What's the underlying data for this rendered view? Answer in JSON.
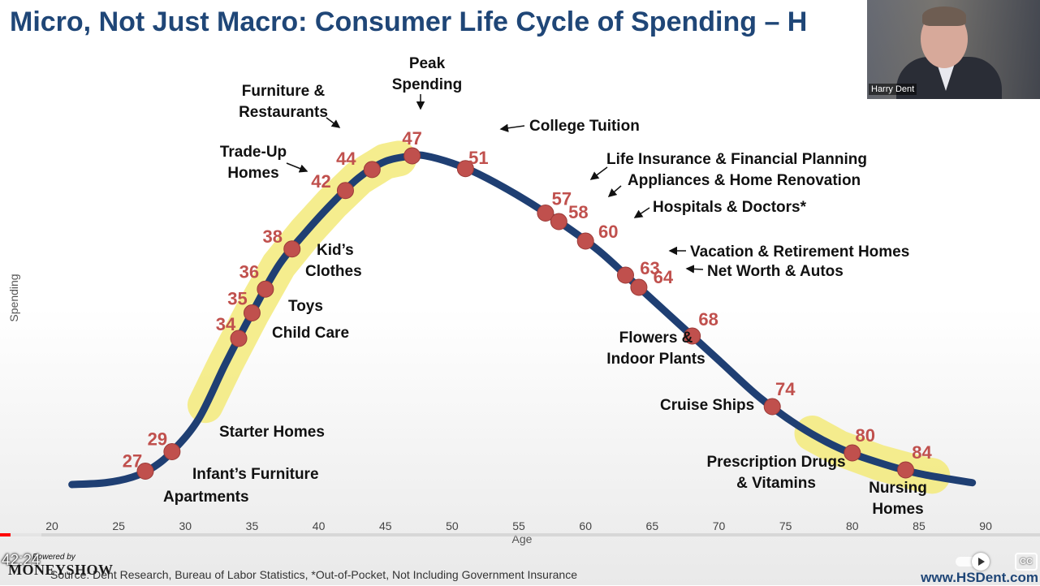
{
  "slide": {
    "title": "Micro, Not Just Macro: Consumer Life Cycle of Spending – H",
    "source": "Source: Dent Research, Bureau of Labor Statistics, *Out-of-Pocket, Not Including Government Insurance",
    "url": "www.HSDent.com"
  },
  "webcam": {
    "name": "Harry Dent"
  },
  "player": {
    "timestamp": "42:24",
    "powered_by": "Powered by",
    "logo": "MONEYSHOW",
    "cc_label": "CC",
    "progress_fraction": 0.01,
    "buffer_fraction": 0.04
  },
  "chart_data": {
    "type": "line",
    "title": "Micro, Not Just Macro: Consumer Life Cycle of Spending – H",
    "xlabel": "Age",
    "ylabel": "Spending",
    "xlim": [
      20,
      90
    ],
    "ylim": [
      0,
      100
    ],
    "xticks": [
      "20",
      "25",
      "30",
      "35",
      "40",
      "45",
      "50",
      "55",
      "60",
      "65",
      "70",
      "75",
      "80",
      "85",
      "90"
    ],
    "curve": [
      [
        21.5,
        4
      ],
      [
        24,
        4.5
      ],
      [
        26,
        6
      ],
      [
        27.5,
        8.5
      ],
      [
        29,
        13
      ],
      [
        31,
        22
      ],
      [
        33,
        37
      ],
      [
        35,
        51
      ],
      [
        37,
        64
      ],
      [
        39,
        73
      ],
      [
        41,
        81
      ],
      [
        43,
        88
      ],
      [
        45,
        92.5
      ],
      [
        47,
        94
      ],
      [
        48,
        94
      ],
      [
        50,
        92
      ],
      [
        52,
        89
      ],
      [
        55,
        83
      ],
      [
        58,
        76
      ],
      [
        61,
        68
      ],
      [
        64,
        58
      ],
      [
        67,
        48
      ],
      [
        70,
        38
      ],
      [
        73,
        28
      ],
      [
        76,
        20
      ],
      [
        79,
        14
      ],
      [
        82,
        10
      ],
      [
        85,
        7
      ],
      [
        89,
        4.5
      ]
    ],
    "highlights": [
      [
        31.5,
        46
      ],
      [
        77,
        86
      ]
    ],
    "points": [
      {
        "age": 27,
        "label": "Apartments"
      },
      {
        "age": 29,
        "label": "Infant’s Furniture"
      },
      {
        "age": 34,
        "label": "Starter Homes"
      },
      {
        "age": 35,
        "label": "Child Care"
      },
      {
        "age": 36,
        "label": "Toys"
      },
      {
        "age": 38,
        "label": "Kid’s Clothes"
      },
      {
        "age": 42,
        "label": "Trade-Up Homes"
      },
      {
        "age": 44,
        "label": "Furniture & Restaurants"
      },
      {
        "age": 47,
        "label": "Peak Spending"
      },
      {
        "age": 51,
        "label": "College Tuition"
      },
      {
        "age": 57,
        "label": "Life Insurance & Financial Planning"
      },
      {
        "age": 58,
        "label": "Appliances & Home Renovation"
      },
      {
        "age": 60,
        "label": "Hospitals & Doctors*"
      },
      {
        "age": 63,
        "label": "Vacation & Retirement Homes"
      },
      {
        "age": 64,
        "label": "Net Worth & Autos"
      },
      {
        "age": 68,
        "label": "Flowers & Indoor Plants"
      },
      {
        "age": 74,
        "label": "Cruise Ships"
      },
      {
        "age": 80,
        "label": "Prescription Drugs & Vitamins"
      },
      {
        "age": 84,
        "label": "Nursing Homes"
      }
    ],
    "colors": {
      "line": "#1f3f73",
      "point": "#c0504d",
      "highlight": "#f3ea7a",
      "age_label": "#c0504d"
    }
  }
}
